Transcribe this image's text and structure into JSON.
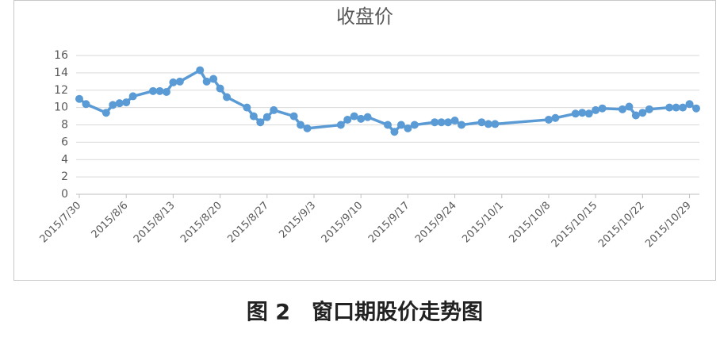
{
  "chart_data": {
    "type": "line",
    "title": "收盘价",
    "caption": "图 2　窗口期股价走势图",
    "x": [
      "2015/7/30",
      "2015/7/31",
      "2015/8/3",
      "2015/8/4",
      "2015/8/5",
      "2015/8/6",
      "2015/8/7",
      "2015/8/10",
      "2015/8/11",
      "2015/8/12",
      "2015/8/13",
      "2015/8/14",
      "2015/8/17",
      "2015/8/18",
      "2015/8/19",
      "2015/8/20",
      "2015/8/21",
      "2015/8/24",
      "2015/8/25",
      "2015/8/26",
      "2015/8/27",
      "2015/8/28",
      "2015/8/31",
      "2015/9/1",
      "2015/9/2",
      "2015/9/7",
      "2015/9/8",
      "2015/9/9",
      "2015/9/10",
      "2015/9/11",
      "2015/9/14",
      "2015/9/15",
      "2015/9/16",
      "2015/9/17",
      "2015/9/18",
      "2015/9/21",
      "2015/9/22",
      "2015/9/23",
      "2015/9/24",
      "2015/9/25",
      "2015/9/28",
      "2015/9/29",
      "2015/9/30",
      "2015/10/8",
      "2015/10/9",
      "2015/10/12",
      "2015/10/13",
      "2015/10/14",
      "2015/10/15",
      "2015/10/16",
      "2015/10/19",
      "2015/10/20",
      "2015/10/21",
      "2015/10/22",
      "2015/10/23",
      "2015/10/26",
      "2015/10/27",
      "2015/10/28",
      "2015/10/29",
      "2015/10/30"
    ],
    "series": [
      {
        "name": "收盘价",
        "color": "#5b9bd5",
        "values": [
          11.0,
          10.4,
          9.4,
          10.3,
          10.5,
          10.6,
          11.3,
          11.9,
          11.9,
          11.8,
          12.9,
          13.0,
          14.3,
          13.0,
          13.3,
          12.2,
          11.2,
          10.0,
          9.0,
          8.3,
          8.9,
          9.7,
          9.0,
          8.0,
          7.6,
          8.0,
          8.6,
          9.0,
          8.7,
          8.9,
          8.0,
          7.2,
          8.0,
          7.6,
          8.0,
          8.3,
          8.3,
          8.3,
          8.5,
          8.0,
          8.3,
          8.1,
          8.1,
          8.6,
          8.8,
          9.3,
          9.4,
          9.3,
          9.7,
          9.9,
          9.8,
          10.1,
          9.1,
          9.4,
          9.8,
          10.0,
          10.0,
          10.0,
          10.4,
          9.9
        ]
      }
    ],
    "xlim": [
      "2015/7/30",
      "2015/10/30"
    ],
    "xticks": [
      "2015/7/30",
      "2015/8/6",
      "2015/8/13",
      "2015/8/20",
      "2015/8/27",
      "2015/9/3",
      "2015/9/10",
      "2015/9/17",
      "2015/9/24",
      "2015/10/1",
      "2015/10/8",
      "2015/10/15",
      "2015/10/22",
      "2015/10/29"
    ],
    "ylim": [
      0,
      16
    ],
    "yticks": [
      0,
      2,
      4,
      6,
      8,
      10,
      12,
      14,
      16
    ],
    "grid": true
  }
}
